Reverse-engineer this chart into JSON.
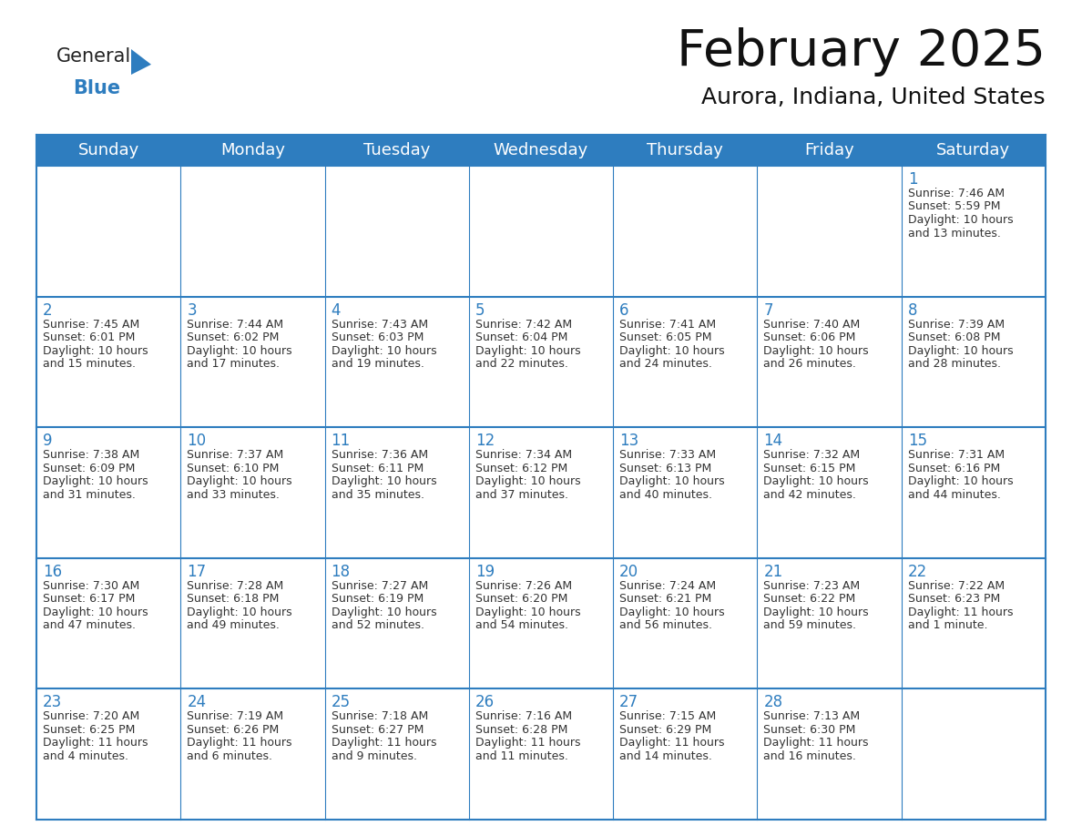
{
  "title": "February 2025",
  "subtitle": "Aurora, Indiana, United States",
  "header_bg": "#2E7DBF",
  "header_text": "#FFFFFF",
  "grid_line_color": "#2E7DBF",
  "day_number_color": "#2E7DBF",
  "text_color": "#333333",
  "bg_color": "#FFFFFF",
  "day_headers": [
    "Sunday",
    "Monday",
    "Tuesday",
    "Wednesday",
    "Thursday",
    "Friday",
    "Saturday"
  ],
  "weeks": [
    [
      {
        "day": "",
        "lines": []
      },
      {
        "day": "",
        "lines": []
      },
      {
        "day": "",
        "lines": []
      },
      {
        "day": "",
        "lines": []
      },
      {
        "day": "",
        "lines": []
      },
      {
        "day": "",
        "lines": []
      },
      {
        "day": "1",
        "lines": [
          "Sunrise: 7:46 AM",
          "Sunset: 5:59 PM",
          "Daylight: 10 hours",
          "and 13 minutes."
        ]
      }
    ],
    [
      {
        "day": "2",
        "lines": [
          "Sunrise: 7:45 AM",
          "Sunset: 6:01 PM",
          "Daylight: 10 hours",
          "and 15 minutes."
        ]
      },
      {
        "day": "3",
        "lines": [
          "Sunrise: 7:44 AM",
          "Sunset: 6:02 PM",
          "Daylight: 10 hours",
          "and 17 minutes."
        ]
      },
      {
        "day": "4",
        "lines": [
          "Sunrise: 7:43 AM",
          "Sunset: 6:03 PM",
          "Daylight: 10 hours",
          "and 19 minutes."
        ]
      },
      {
        "day": "5",
        "lines": [
          "Sunrise: 7:42 AM",
          "Sunset: 6:04 PM",
          "Daylight: 10 hours",
          "and 22 minutes."
        ]
      },
      {
        "day": "6",
        "lines": [
          "Sunrise: 7:41 AM",
          "Sunset: 6:05 PM",
          "Daylight: 10 hours",
          "and 24 minutes."
        ]
      },
      {
        "day": "7",
        "lines": [
          "Sunrise: 7:40 AM",
          "Sunset: 6:06 PM",
          "Daylight: 10 hours",
          "and 26 minutes."
        ]
      },
      {
        "day": "8",
        "lines": [
          "Sunrise: 7:39 AM",
          "Sunset: 6:08 PM",
          "Daylight: 10 hours",
          "and 28 minutes."
        ]
      }
    ],
    [
      {
        "day": "9",
        "lines": [
          "Sunrise: 7:38 AM",
          "Sunset: 6:09 PM",
          "Daylight: 10 hours",
          "and 31 minutes."
        ]
      },
      {
        "day": "10",
        "lines": [
          "Sunrise: 7:37 AM",
          "Sunset: 6:10 PM",
          "Daylight: 10 hours",
          "and 33 minutes."
        ]
      },
      {
        "day": "11",
        "lines": [
          "Sunrise: 7:36 AM",
          "Sunset: 6:11 PM",
          "Daylight: 10 hours",
          "and 35 minutes."
        ]
      },
      {
        "day": "12",
        "lines": [
          "Sunrise: 7:34 AM",
          "Sunset: 6:12 PM",
          "Daylight: 10 hours",
          "and 37 minutes."
        ]
      },
      {
        "day": "13",
        "lines": [
          "Sunrise: 7:33 AM",
          "Sunset: 6:13 PM",
          "Daylight: 10 hours",
          "and 40 minutes."
        ]
      },
      {
        "day": "14",
        "lines": [
          "Sunrise: 7:32 AM",
          "Sunset: 6:15 PM",
          "Daylight: 10 hours",
          "and 42 minutes."
        ]
      },
      {
        "day": "15",
        "lines": [
          "Sunrise: 7:31 AM",
          "Sunset: 6:16 PM",
          "Daylight: 10 hours",
          "and 44 minutes."
        ]
      }
    ],
    [
      {
        "day": "16",
        "lines": [
          "Sunrise: 7:30 AM",
          "Sunset: 6:17 PM",
          "Daylight: 10 hours",
          "and 47 minutes."
        ]
      },
      {
        "day": "17",
        "lines": [
          "Sunrise: 7:28 AM",
          "Sunset: 6:18 PM",
          "Daylight: 10 hours",
          "and 49 minutes."
        ]
      },
      {
        "day": "18",
        "lines": [
          "Sunrise: 7:27 AM",
          "Sunset: 6:19 PM",
          "Daylight: 10 hours",
          "and 52 minutes."
        ]
      },
      {
        "day": "19",
        "lines": [
          "Sunrise: 7:26 AM",
          "Sunset: 6:20 PM",
          "Daylight: 10 hours",
          "and 54 minutes."
        ]
      },
      {
        "day": "20",
        "lines": [
          "Sunrise: 7:24 AM",
          "Sunset: 6:21 PM",
          "Daylight: 10 hours",
          "and 56 minutes."
        ]
      },
      {
        "day": "21",
        "lines": [
          "Sunrise: 7:23 AM",
          "Sunset: 6:22 PM",
          "Daylight: 10 hours",
          "and 59 minutes."
        ]
      },
      {
        "day": "22",
        "lines": [
          "Sunrise: 7:22 AM",
          "Sunset: 6:23 PM",
          "Daylight: 11 hours",
          "and 1 minute."
        ]
      }
    ],
    [
      {
        "day": "23",
        "lines": [
          "Sunrise: 7:20 AM",
          "Sunset: 6:25 PM",
          "Daylight: 11 hours",
          "and 4 minutes."
        ]
      },
      {
        "day": "24",
        "lines": [
          "Sunrise: 7:19 AM",
          "Sunset: 6:26 PM",
          "Daylight: 11 hours",
          "and 6 minutes."
        ]
      },
      {
        "day": "25",
        "lines": [
          "Sunrise: 7:18 AM",
          "Sunset: 6:27 PM",
          "Daylight: 11 hours",
          "and 9 minutes."
        ]
      },
      {
        "day": "26",
        "lines": [
          "Sunrise: 7:16 AM",
          "Sunset: 6:28 PM",
          "Daylight: 11 hours",
          "and 11 minutes."
        ]
      },
      {
        "day": "27",
        "lines": [
          "Sunrise: 7:15 AM",
          "Sunset: 6:29 PM",
          "Daylight: 11 hours",
          "and 14 minutes."
        ]
      },
      {
        "day": "28",
        "lines": [
          "Sunrise: 7:13 AM",
          "Sunset: 6:30 PM",
          "Daylight: 11 hours",
          "and 16 minutes."
        ]
      },
      {
        "day": "",
        "lines": []
      }
    ]
  ],
  "logo_general_color": "#222222",
  "logo_blue_color": "#2E7DBF",
  "title_fontsize": 40,
  "subtitle_fontsize": 18,
  "header_fontsize": 13,
  "day_num_fontsize": 12,
  "cell_text_fontsize": 9
}
